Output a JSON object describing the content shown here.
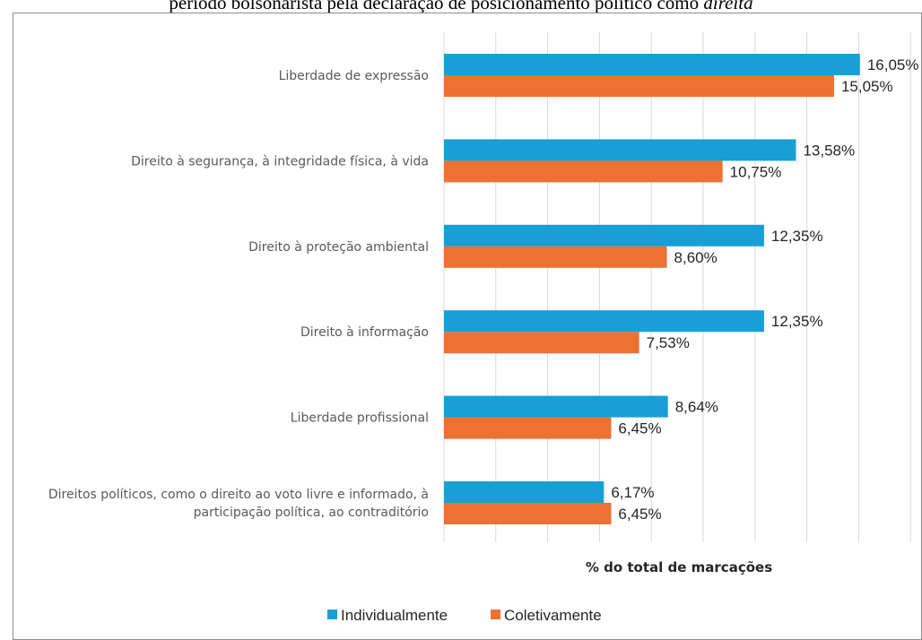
{
  "title": {
    "part1": "período bolsonarista pela declaração de posicionamento político como ",
    "part2": "direita"
  },
  "chart_data": {
    "type": "bar",
    "orientation": "horizontal",
    "categories": [
      "Liberdade de expressão",
      "Direito à segurança, à integridade física, à vida",
      "Direito à proteção ambiental",
      "Direito à informação",
      "Liberdade profissional",
      "Direitos políticos, como o direito ao voto livre e informado, à participação política, ao contraditório"
    ],
    "category_lines": [
      [
        "Liberdade de expressão"
      ],
      [
        "Direito à segurança, à integridade física, à vida"
      ],
      [
        "Direito à proteção ambiental"
      ],
      [
        "Direito à informação"
      ],
      [
        "Liberdade profissional"
      ],
      [
        "Direitos políticos, como o direito ao voto livre e informado, à",
        "participação política, ao contraditório"
      ]
    ],
    "series": [
      {
        "name": "Individualmente",
        "color": "#179fd6",
        "values": [
          16.05,
          13.58,
          12.35,
          12.35,
          8.64,
          6.17
        ],
        "labels": [
          "16,05%",
          "13,58%",
          "12,35%",
          "12,35%",
          "8,64%",
          "6,17%"
        ]
      },
      {
        "name": "Coletivamente",
        "color": "#ec7132",
        "values": [
          15.05,
          10.75,
          8.6,
          7.53,
          6.45,
          6.45
        ],
        "labels": [
          "15,05%",
          "10,75%",
          "8,60%",
          "7,53%",
          "6,45%",
          "6,45%"
        ]
      }
    ],
    "xlabel": "% do total de marcações",
    "xlim": [
      0,
      18
    ],
    "grid": true,
    "legend_position": "bottom"
  }
}
